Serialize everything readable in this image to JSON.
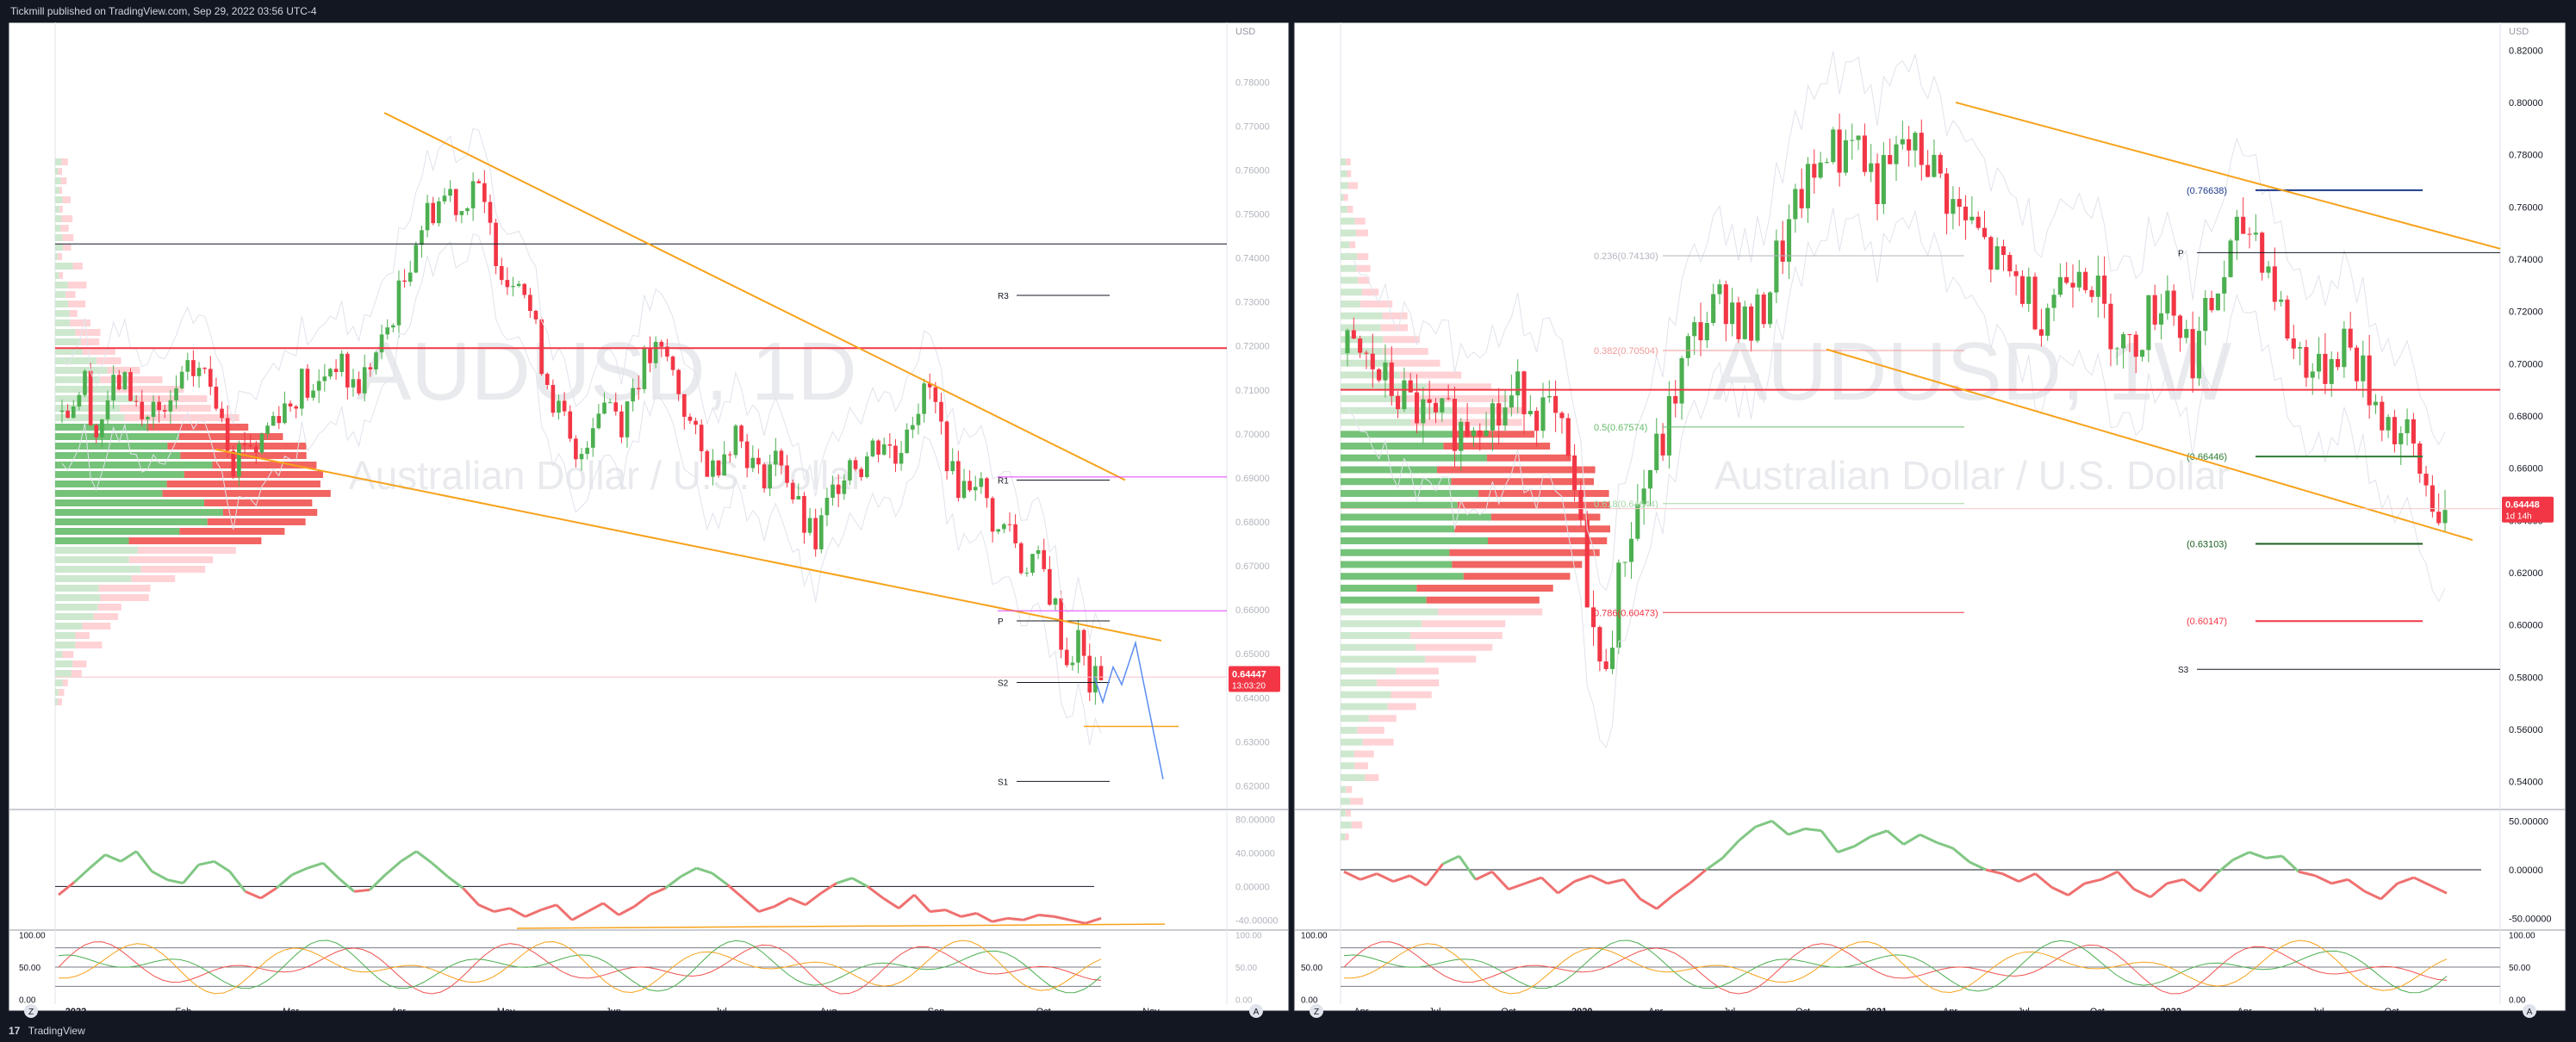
{
  "header": {
    "publisher_line": "Tickmill published on TradingView.com, Sep 29, 2022 03:56 UTC-4"
  },
  "footer": {
    "logo": "17",
    "brand": "TradingView"
  },
  "watermarks": {
    "left_symbol": "AUDUSD, 1D",
    "right_symbol": "AUDUSD, 1W",
    "subtitle": "Australian Dollar / U.S. Dollar"
  },
  "colors": {
    "bull": "#4caf50",
    "bear": "#f23645",
    "trend": "#f7a21b",
    "projection": "#5b8def",
    "pivot": "#e040fb",
    "panel_bg": "#ffffff",
    "page_bg": "#131722"
  },
  "chart_data": [
    {
      "type": "candlestick",
      "id": "left-daily",
      "symbol": "AUDUSD, 1D",
      "currency": "USD",
      "ylim": [
        0.615,
        0.792
      ],
      "y_ticks": [
        0.78,
        0.77,
        0.76,
        0.75,
        0.74,
        0.73,
        0.72,
        0.71,
        0.7,
        0.69,
        0.68,
        0.67,
        0.66,
        0.65,
        0.64,
        0.63,
        0.62
      ],
      "y_tick_labels": [
        "0.78000",
        "0.77000",
        "0.76000",
        "0.75000",
        "0.74000",
        "0.73000",
        "0.72000",
        "0.71000",
        "0.70000",
        "0.69000",
        "0.68000",
        "0.67000",
        "0.66000",
        "0.65000",
        "0.64000",
        "0.63000",
        "0.62000"
      ],
      "x_labels": [
        "2022",
        "Feb",
        "Mar",
        "Apr",
        "May",
        "Jun",
        "Jul",
        "Aug",
        "Sep",
        "Oct",
        "Nov"
      ],
      "last_price": "0.64447",
      "countdown": "13:03:20",
      "close_path": [
        0.705,
        0.708,
        0.712,
        0.7,
        0.708,
        0.712,
        0.71,
        0.703,
        0.706,
        0.702,
        0.71,
        0.713,
        0.715,
        0.711,
        0.706,
        0.694,
        0.699,
        0.697,
        0.702,
        0.706,
        0.707,
        0.712,
        0.708,
        0.714,
        0.717,
        0.712,
        0.711,
        0.716,
        0.72,
        0.728,
        0.735,
        0.745,
        0.75,
        0.753,
        0.755,
        0.751,
        0.758,
        0.75,
        0.742,
        0.735,
        0.738,
        0.728,
        0.717,
        0.708,
        0.702,
        0.692,
        0.7,
        0.707,
        0.708,
        0.703,
        0.711,
        0.716,
        0.718,
        0.717,
        0.71,
        0.702,
        0.695,
        0.692,
        0.697,
        0.701,
        0.696,
        0.69,
        0.693,
        0.695,
        0.686,
        0.679,
        0.675,
        0.683,
        0.69,
        0.695,
        0.693,
        0.697,
        0.699,
        0.694,
        0.703,
        0.707,
        0.71,
        0.701,
        0.69,
        0.688,
        0.691,
        0.684,
        0.677,
        0.68,
        0.67,
        0.672,
        0.668,
        0.66,
        0.648,
        0.653,
        0.643,
        0.644
      ],
      "horizontal_levels": [
        {
          "label": "R3",
          "value": 0.7315
        },
        {
          "label": "R1",
          "value": 0.6895
        },
        {
          "label": "P",
          "value": 0.6575
        },
        {
          "label": "S2",
          "value": 0.6435
        },
        {
          "label": "S1",
          "value": 0.621
        }
      ],
      "black_level": 0.7432,
      "red_level": 0.7195,
      "projection_path": [
        0.6448,
        0.639,
        0.647,
        0.643,
        0.6525,
        0.6215
      ],
      "rsi": {
        "ticks": [
          "80.00000",
          "40.00000",
          "0.00000",
          "-40.00000"
        ],
        "values": [
          -10,
          5,
          22,
          38,
          30,
          42,
          18,
          8,
          4,
          26,
          30,
          18,
          -6,
          -14,
          -2,
          14,
          22,
          28,
          10,
          -6,
          -4,
          14,
          30,
          42,
          28,
          12,
          -2,
          -22,
          -30,
          -26,
          -36,
          -28,
          -22,
          -40,
          -30,
          -20,
          -34,
          -24,
          -10,
          -2,
          12,
          22,
          16,
          2,
          -14,
          -30,
          -24,
          -14,
          -22,
          -8,
          4,
          10,
          0,
          -14,
          -26,
          -10,
          -30,
          -28,
          -36,
          -32,
          -42,
          -38,
          -40,
          -34,
          -36,
          -40,
          -44,
          -38
        ]
      },
      "stoch": {
        "ticks": [
          "100.00",
          "50.00",
          "0.00"
        ]
      }
    },
    {
      "type": "candlestick",
      "id": "right-weekly",
      "symbol": "AUDUSD, 1W",
      "currency": "USD",
      "ylim": [
        0.53,
        0.828
      ],
      "y_ticks": [
        0.82,
        0.8,
        0.78,
        0.76,
        0.74,
        0.72,
        0.7,
        0.68,
        0.66,
        0.64,
        0.62,
        0.6,
        0.58,
        0.56,
        0.54
      ],
      "y_tick_labels": [
        "0.82000",
        "0.80000",
        "0.78000",
        "0.76000",
        "0.74000",
        "0.72000",
        "0.70000",
        "0.68000",
        "0.66000",
        "0.64000",
        "0.62000",
        "0.60000",
        "0.58000",
        "0.56000",
        "0.54000"
      ],
      "x_labels": [
        "Apr",
        "Jul",
        "Oct",
        "2020",
        "Apr",
        "Jul",
        "Oct",
        "2021",
        "Apr",
        "Jul",
        "Oct",
        "2022",
        "Apr",
        "Jul",
        "Oct"
      ],
      "last_price": "0.64448",
      "countdown": "1d 14h",
      "close_path": [
        0.704,
        0.702,
        0.698,
        0.692,
        0.688,
        0.684,
        0.68,
        0.676,
        0.678,
        0.675,
        0.68,
        0.684,
        0.679,
        0.686,
        0.69,
        0.684,
        0.68,
        0.67,
        0.65,
        0.615,
        0.58,
        0.6,
        0.63,
        0.645,
        0.66,
        0.67,
        0.69,
        0.705,
        0.715,
        0.72,
        0.725,
        0.718,
        0.712,
        0.722,
        0.74,
        0.75,
        0.765,
        0.77,
        0.785,
        0.779,
        0.792,
        0.776,
        0.769,
        0.772,
        0.785,
        0.78,
        0.778,
        0.77,
        0.76,
        0.754,
        0.749,
        0.74,
        0.735,
        0.732,
        0.726,
        0.72,
        0.728,
        0.734,
        0.742,
        0.732,
        0.718,
        0.712,
        0.704,
        0.714,
        0.722,
        0.729,
        0.714,
        0.704,
        0.716,
        0.728,
        0.741,
        0.752,
        0.75,
        0.737,
        0.72,
        0.706,
        0.702,
        0.694,
        0.704,
        0.71,
        0.7,
        0.69,
        0.682,
        0.674,
        0.67,
        0.658,
        0.648,
        0.644
      ],
      "horizontal_levels": [
        {
          "label": "P",
          "value": 0.7425
        },
        {
          "label": "S3",
          "value": 0.583
        }
      ],
      "red_level": 0.69,
      "fibonacci": [
        {
          "label": "(0.76638)",
          "value": 0.76638,
          "color": "#1e3a8a"
        },
        {
          "label": "0.236(0.74130)",
          "value": 0.7413,
          "color": "#b2b5be"
        },
        {
          "label": "0.382(0.70504)",
          "value": 0.70504,
          "color": "#ef9a9a"
        },
        {
          "label": "(0.66446)",
          "value": 0.66446,
          "color": "#2e7d32"
        },
        {
          "label": "0.5(0.67574)",
          "value": 0.67574,
          "color": "#66bb6a"
        },
        {
          "label": "0.618(0.64644)",
          "value": 0.64644,
          "color": "#a5d6a7"
        },
        {
          "label": "(0.63103)",
          "value": 0.63103,
          "color": "#1b5e20"
        },
        {
          "label": "0.786(0.60473)",
          "value": 0.60473,
          "color": "#f23645"
        },
        {
          "label": "(0.60147)",
          "value": 0.60147,
          "color": "#f23645"
        }
      ],
      "rsi": {
        "ticks": [
          "50.00000",
          "0.00000",
          "-50.00000"
        ],
        "values": [
          -2,
          -10,
          -4,
          -12,
          -6,
          -16,
          6,
          14,
          -10,
          -2,
          -20,
          -14,
          -8,
          -24,
          -12,
          -6,
          -14,
          -10,
          -30,
          -40,
          -26,
          -14,
          0,
          12,
          30,
          44,
          50,
          36,
          42,
          40,
          18,
          24,
          34,
          40,
          26,
          36,
          28,
          22,
          8,
          0,
          -4,
          -12,
          -4,
          -18,
          -26,
          -14,
          -10,
          -2,
          -20,
          -28,
          -14,
          -10,
          -22,
          -4,
          10,
          18,
          12,
          14,
          -2,
          -6,
          -14,
          -10,
          -22,
          -30,
          -14,
          -8,
          -16,
          -24
        ]
      },
      "stoch": {
        "ticks": [
          "100.00",
          "50.00",
          "0.00"
        ]
      }
    }
  ],
  "axis_buttons": {
    "left_z": "Z",
    "left_a": "A",
    "right_z": "Z",
    "right_a": "A"
  }
}
